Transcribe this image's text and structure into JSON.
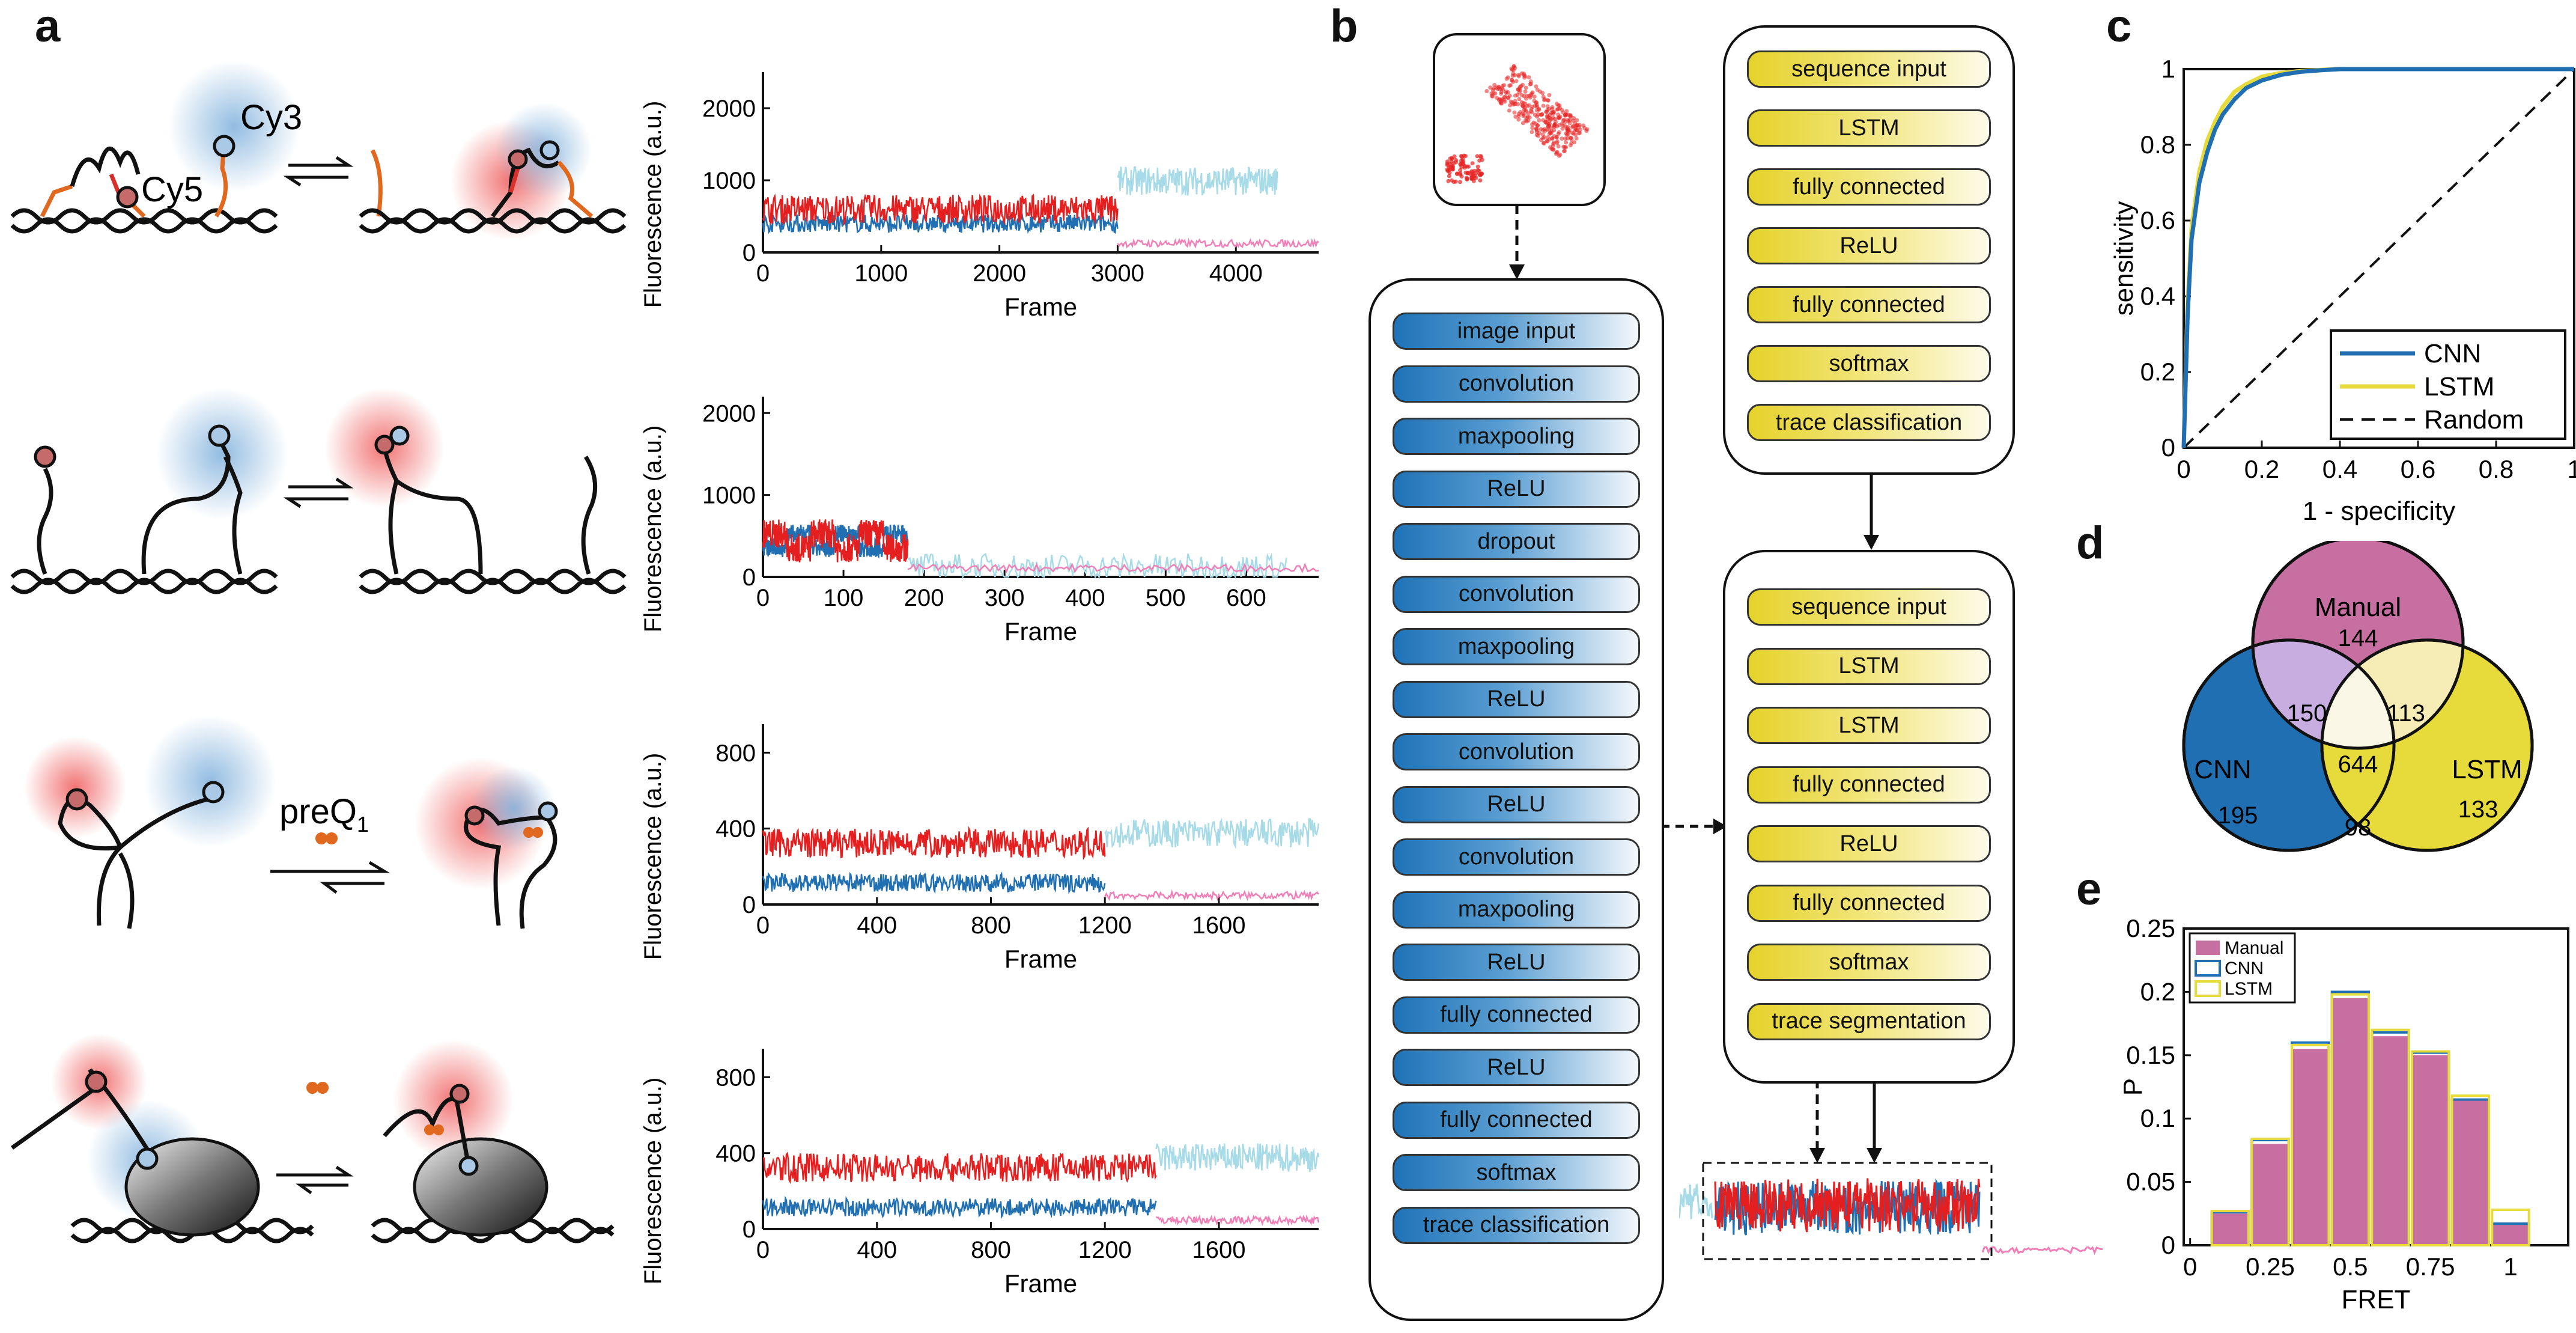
{
  "panel_labels": [
    "a",
    "b",
    "c",
    "d",
    "e"
  ],
  "panel_a": {
    "dye_labels": {
      "cy3": "Cy3",
      "cy5": "Cy5"
    },
    "ligand_label": "preQ",
    "ligand_subscript": "1",
    "traces": [
      {
        "ylabel": "Fluorescence (a.u.)",
        "xlabel": "Frame",
        "yticks": [
          "0",
          "1000",
          "2000"
        ],
        "xticks": [
          "0",
          "1000",
          "2000",
          "3000",
          "4000"
        ],
        "xmax": 4700,
        "ymax": 2500,
        "bleach": 3000,
        "end": 4350
      },
      {
        "ylabel": "Fluorescence (a.u.)",
        "xlabel": "Frame",
        "yticks": [
          "0",
          "1000",
          "2000"
        ],
        "xticks": [
          "0",
          "100",
          "200",
          "300",
          "400",
          "500",
          "600"
        ],
        "xmax": 690,
        "ymax": 2200,
        "bleach": 180,
        "end": 650
      },
      {
        "ylabel": "Fluorescence (a.u.)",
        "xlabel": "Frame",
        "yticks": [
          "0",
          "400",
          "800"
        ],
        "xticks": [
          "0",
          "400",
          "800",
          "1200",
          "1600"
        ],
        "xmax": 1950,
        "ymax": 950,
        "bleach": 1200,
        "end": 1950
      },
      {
        "ylabel": "Fluorescence (a.u.)",
        "xlabel": "Frame",
        "yticks": [
          "0",
          "400",
          "800"
        ],
        "xticks": [
          "0",
          "400",
          "800",
          "1200",
          "1600"
        ],
        "xmax": 1950,
        "ymax": 950,
        "bleach": 1380,
        "end": 1950
      }
    ]
  },
  "panel_b": {
    "cnn_layers": [
      "image input",
      "convolution",
      "maxpooling",
      "ReLU",
      "dropout",
      "convolution",
      "maxpooling",
      "ReLU",
      "convolution",
      "ReLU",
      "convolution",
      "maxpooling",
      "ReLU",
      "fully connected",
      "ReLU",
      "fully connected",
      "softmax",
      "trace classification"
    ],
    "lstm_class_layers": [
      "sequence input",
      "LSTM",
      "fully connected",
      "ReLU",
      "fully connected",
      "softmax",
      "trace classification"
    ],
    "lstm_seg_layers": [
      "sequence input",
      "LSTM",
      "LSTM",
      "fully connected",
      "ReLU",
      "fully connected",
      "softmax",
      "trace segmentation"
    ]
  },
  "panel_c": {
    "chart_data": {
      "type": "line",
      "xlabel": "1 - specificity",
      "ylabel": "sensitivity",
      "xlim": [
        0,
        1
      ],
      "ylim": [
        0,
        1
      ],
      "xticks": [
        "0",
        "0.2",
        "0.4",
        "0.6",
        "0.8",
        "1"
      ],
      "yticks": [
        "0",
        "0.2",
        "0.4",
        "0.6",
        "0.8",
        "1"
      ],
      "legend_position": "bottom-right",
      "series": [
        {
          "name": "CNN",
          "color": "#1f6fb2",
          "x": [
            0,
            0.01,
            0.02,
            0.04,
            0.06,
            0.08,
            0.1,
            0.13,
            0.16,
            0.2,
            0.25,
            0.3,
            0.35,
            0.4,
            0.5,
            0.6,
            0.8,
            1
          ],
          "y": [
            0,
            0.35,
            0.55,
            0.7,
            0.78,
            0.84,
            0.88,
            0.92,
            0.95,
            0.97,
            0.985,
            0.993,
            0.997,
            1,
            1,
            1,
            1,
            1
          ]
        },
        {
          "name": "LSTM",
          "color": "#e6db3a",
          "x": [
            0,
            0.01,
            0.02,
            0.04,
            0.06,
            0.08,
            0.1,
            0.13,
            0.16,
            0.2,
            0.25,
            0.3,
            0.35,
            0.4,
            0.5,
            0.6,
            0.8,
            1
          ],
          "y": [
            0,
            0.38,
            0.58,
            0.73,
            0.81,
            0.86,
            0.9,
            0.94,
            0.96,
            0.98,
            0.99,
            0.995,
            0.998,
            1,
            1,
            1,
            1,
            1
          ]
        },
        {
          "name": "Random",
          "color": "#111111",
          "x": [
            0,
            1
          ],
          "y": [
            0,
            1
          ]
        }
      ]
    }
  },
  "panel_d": {
    "sets": {
      "manual": "Manual",
      "cnn": "CNN",
      "lstm": "LSTM"
    },
    "counts": {
      "manual_only": "144",
      "cnn_only": "195",
      "lstm_only": "133",
      "manual_cnn": "150",
      "manual_lstm": "113",
      "cnn_lstm": "98",
      "all": "644"
    }
  },
  "panel_e": {
    "chart_data": {
      "type": "bar",
      "xlabel": "FRET",
      "ylabel": "P",
      "ylim": [
        0,
        0.25
      ],
      "xticks": [
        "0",
        "0.25",
        "0.5",
        "0.75",
        "1"
      ],
      "yticks": [
        "0",
        "0.05",
        "0.1",
        "0.15",
        "0.2",
        "0.25"
      ],
      "legend_position": "top-left",
      "x": [
        0.125,
        0.25,
        0.375,
        0.5,
        0.625,
        0.75,
        0.875,
        1.0
      ],
      "series": [
        {
          "name": "Manual",
          "color": "#c86fa2",
          "values": [
            0.025,
            0.08,
            0.155,
            0.195,
            0.165,
            0.15,
            0.115,
            0.018
          ]
        },
        {
          "name": "CNN",
          "color": "#1f6fb2",
          "values": [
            0.026,
            0.083,
            0.16,
            0.2,
            0.168,
            0.152,
            0.115,
            0.017
          ]
        },
        {
          "name": "LSTM",
          "color": "#e6db3a",
          "values": [
            0.027,
            0.084,
            0.158,
            0.198,
            0.17,
            0.153,
            0.118,
            0.028
          ]
        }
      ]
    }
  }
}
